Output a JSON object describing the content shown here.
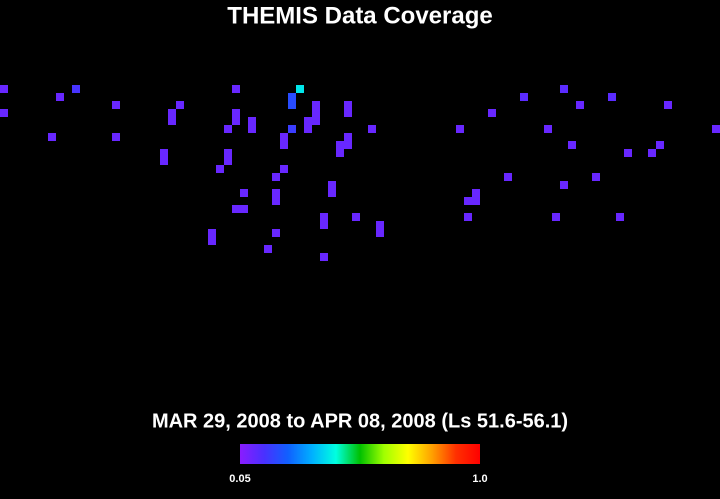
{
  "chart_data": {
    "type": "heatmap",
    "title": "THEMIS Data Coverage",
    "subtitle": "MAR 29, 2008 to APR 08, 2008 (Ls 51.6-56.1)",
    "x": [
      0,
      0,
      7,
      9,
      6,
      14,
      14,
      22,
      21,
      21,
      20,
      20,
      29,
      29,
      29,
      28,
      31,
      31,
      28,
      28,
      27,
      30,
      29,
      30,
      26,
      26,
      33,
      34,
      34,
      34,
      34,
      35,
      35,
      35,
      37,
      36,
      36,
      36,
      38,
      38,
      39,
      39,
      39,
      43,
      43,
      43,
      43,
      42,
      42,
      46,
      41,
      41,
      40,
      40,
      44,
      47,
      47,
      40,
      57,
      61,
      65,
      70,
      72,
      76,
      83,
      89,
      68,
      71,
      78,
      81,
      82,
      63,
      70,
      74,
      59,
      59,
      58,
      58,
      69,
      77
    ],
    "y": [
      10,
      13,
      11,
      10,
      16,
      12,
      16,
      12,
      13,
      14,
      18,
      19,
      10,
      13,
      14,
      15,
      14,
      15,
      18,
      19,
      20,
      23,
      25,
      25,
      28,
      29,
      30,
      28,
      21,
      23,
      24,
      16,
      17,
      20,
      10,
      11,
      12,
      15,
      14,
      15,
      12,
      13,
      14,
      12,
      13,
      16,
      17,
      17,
      18,
      15,
      22,
      23,
      26,
      27,
      26,
      27,
      28,
      31,
      15,
      13,
      11,
      10,
      12,
      11,
      12,
      15,
      15,
      17,
      18,
      18,
      17,
      21,
      22,
      21,
      23,
      24,
      24,
      26,
      26,
      26
    ],
    "values": [
      0.1,
      0.1,
      0.1,
      0.15,
      0.1,
      0.1,
      0.1,
      0.1,
      0.1,
      0.1,
      0.1,
      0.1,
      0.1,
      0.1,
      0.1,
      0.1,
      0.1,
      0.1,
      0.1,
      0.1,
      0.1,
      0.1,
      0.1,
      0.1,
      0.1,
      0.1,
      0.1,
      0.1,
      0.1,
      0.1,
      0.1,
      0.1,
      0.1,
      0.1,
      0.4,
      0.2,
      0.2,
      0.17,
      0.1,
      0.1,
      0.1,
      0.1,
      0.1,
      0.1,
      0.1,
      0.1,
      0.1,
      0.1,
      0.1,
      0.1,
      0.1,
      0.1,
      0.1,
      0.1,
      0.1,
      0.1,
      0.1,
      0.1,
      0.1,
      0.1,
      0.12,
      0.12,
      0.1,
      0.12,
      0.1,
      0.1,
      0.1,
      0.1,
      0.1,
      0.1,
      0.1,
      0.1,
      0.1,
      0.1,
      0.1,
      0.1,
      0.1,
      0.1,
      0.1,
      0.1
    ],
    "xlim": [
      0,
      90
    ],
    "ylim": [
      60,
      0
    ],
    "colorbar": {
      "lim": [
        0.05,
        1
      ],
      "ticks": [
        0.05,
        {
          "value": 1,
          "label": "1.0"
        }
      ]
    },
    "colormap": [
      "#8a1cff",
      "#4a30ff",
      "#1060ff",
      "#00b0ff",
      "#00ffe0",
      "#00c000",
      "#a0ff00",
      "#ffff00",
      "#ffa000",
      "#ff3000",
      "#ff0000"
    ]
  }
}
